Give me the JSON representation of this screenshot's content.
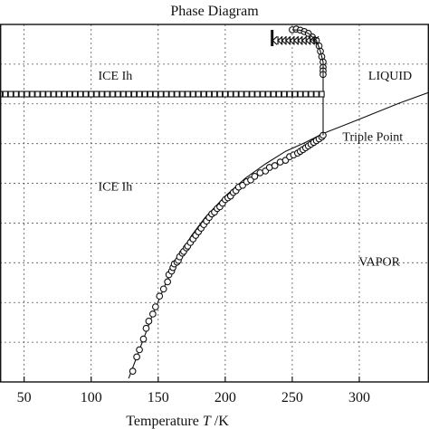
{
  "chart_data": {
    "type": "scatter",
    "title": "Phase Diagram",
    "xlabel_prefix": "Temperature ",
    "xlabel_var": "T",
    "xlabel_unit": " /K",
    "xlim": [
      32,
      352
    ],
    "ylim": [
      0,
      1
    ],
    "x_ticks": [
      50,
      100,
      150,
      200,
      250,
      300
    ],
    "x_tick_labels": [
      "50",
      "100",
      "150",
      "200",
      "250",
      "300"
    ],
    "grid": true,
    "annotations": [
      {
        "text": "ICE Ih",
        "x": 118,
        "y": 0.845
      },
      {
        "text": "LIQUID",
        "x": 323,
        "y": 0.845
      },
      {
        "text": "ICE Ih",
        "x": 118,
        "y": 0.535
      },
      {
        "text": "Triple Point",
        "x": 310,
        "y": 0.675
      },
      {
        "text": "VAPOR",
        "x": 315,
        "y": 0.325
      }
    ],
    "series": [
      {
        "type": "line",
        "points": [
          [
            128,
            0.01
          ],
          [
            135,
            0.08
          ],
          [
            145,
            0.18
          ],
          [
            155,
            0.27
          ],
          [
            165,
            0.35
          ],
          [
            175,
            0.41
          ],
          [
            185,
            0.46
          ],
          [
            200,
            0.52
          ],
          [
            215,
            0.57
          ],
          [
            230,
            0.61
          ],
          [
            245,
            0.645
          ],
          [
            260,
            0.67
          ],
          [
            273,
            0.695
          ],
          [
            290,
            0.72
          ],
          [
            310,
            0.75
          ],
          [
            330,
            0.78
          ],
          [
            352,
            0.81
          ]
        ]
      },
      {
        "type": "scatter",
        "marker": "circle",
        "points": [
          [
            131,
            0.03
          ],
          [
            134,
            0.07
          ],
          [
            136,
            0.09
          ],
          [
            139,
            0.12
          ],
          [
            141,
            0.15
          ],
          [
            143,
            0.17
          ],
          [
            146,
            0.19
          ],
          [
            148,
            0.21
          ],
          [
            151,
            0.24
          ],
          [
            154,
            0.26
          ],
          [
            157,
            0.28
          ],
          [
            158,
            0.3
          ],
          [
            160,
            0.31
          ],
          [
            161,
            0.32
          ],
          [
            162,
            0.33
          ],
          [
            164,
            0.335
          ],
          [
            165,
            0.34
          ],
          [
            166,
            0.35
          ],
          [
            168,
            0.36
          ],
          [
            169,
            0.365
          ],
          [
            171,
            0.375
          ],
          [
            172,
            0.38
          ],
          [
            174,
            0.39
          ],
          [
            176,
            0.4
          ],
          [
            178,
            0.41
          ],
          [
            180,
            0.42
          ],
          [
            182,
            0.43
          ],
          [
            184,
            0.44
          ],
          [
            186,
            0.45
          ],
          [
            188,
            0.46
          ],
          [
            190,
            0.47
          ],
          [
            192,
            0.475
          ],
          [
            194,
            0.485
          ],
          [
            196,
            0.49
          ],
          [
            198,
            0.5
          ],
          [
            200,
            0.51
          ],
          [
            202,
            0.515
          ],
          [
            204,
            0.52
          ],
          [
            206,
            0.53
          ],
          [
            208,
            0.535
          ],
          [
            210,
            0.545
          ],
          [
            213,
            0.55
          ],
          [
            216,
            0.56
          ],
          [
            219,
            0.565
          ],
          [
            222,
            0.575
          ],
          [
            226,
            0.585
          ],
          [
            230,
            0.59
          ],
          [
            233,
            0.6
          ],
          [
            237,
            0.605
          ],
          [
            241,
            0.615
          ],
          [
            245,
            0.62
          ],
          [
            248,
            0.63
          ],
          [
            251,
            0.635
          ],
          [
            254,
            0.64
          ],
          [
            256,
            0.645
          ],
          [
            258,
            0.65
          ],
          [
            260,
            0.655
          ],
          [
            262,
            0.66
          ],
          [
            264,
            0.665
          ],
          [
            266,
            0.67
          ],
          [
            268,
            0.675
          ],
          [
            270,
            0.68
          ],
          [
            272,
            0.685
          ],
          [
            273,
            0.69
          ]
        ]
      },
      {
        "type": "scatter",
        "marker": "circle",
        "points": [
          [
            250,
            0.985
          ],
          [
            253,
            0.987
          ],
          [
            256,
            0.984
          ],
          [
            259,
            0.98
          ],
          [
            262,
            0.975
          ],
          [
            265,
            0.965
          ],
          [
            268,
            0.955
          ],
          [
            270,
            0.94
          ],
          [
            271,
            0.925
          ],
          [
            272,
            0.91
          ],
          [
            273,
            0.895
          ],
          [
            273,
            0.88
          ],
          [
            273,
            0.87
          ],
          [
            273,
            0.86
          ]
        ]
      },
      {
        "type": "line",
        "points": [
          [
            250,
            0.985
          ],
          [
            256,
            0.984
          ],
          [
            262,
            0.975
          ],
          [
            268,
            0.955
          ],
          [
            271,
            0.925
          ],
          [
            273,
            0.895
          ],
          [
            273,
            0.84
          ],
          [
            273,
            0.69
          ]
        ]
      },
      {
        "type": "scatter",
        "marker": "k",
        "points": [
          [
            237,
            0.955
          ],
          [
            241,
            0.955
          ],
          [
            244,
            0.955
          ],
          [
            247,
            0.955
          ],
          [
            250,
            0.955
          ],
          [
            253,
            0.955
          ],
          [
            256,
            0.955
          ],
          [
            259,
            0.955
          ],
          [
            262,
            0.955
          ],
          [
            265,
            0.955
          ],
          [
            268,
            0.955
          ]
        ]
      },
      {
        "type": "scatter",
        "marker": "tick",
        "points": [
          [
            235,
            0.962
          ]
        ]
      },
      {
        "type": "scatter",
        "marker": "dash",
        "points": [
          [
            32,
            0.805
          ],
          [
            36,
            0.805
          ],
          [
            40,
            0.805
          ],
          [
            44,
            0.805
          ],
          [
            48,
            0.805
          ],
          [
            52,
            0.805
          ],
          [
            56,
            0.805
          ],
          [
            60,
            0.805
          ],
          [
            64,
            0.805
          ],
          [
            68,
            0.805
          ],
          [
            72,
            0.805
          ],
          [
            76,
            0.805
          ],
          [
            80,
            0.805
          ],
          [
            84,
            0.805
          ],
          [
            88,
            0.805
          ],
          [
            92,
            0.805
          ],
          [
            96,
            0.805
          ],
          [
            100,
            0.805
          ],
          [
            104,
            0.805
          ],
          [
            108,
            0.805
          ],
          [
            112,
            0.805
          ],
          [
            116,
            0.805
          ],
          [
            120,
            0.805
          ],
          [
            124,
            0.805
          ],
          [
            128,
            0.805
          ],
          [
            132,
            0.805
          ],
          [
            136,
            0.805
          ],
          [
            140,
            0.805
          ],
          [
            144,
            0.805
          ],
          [
            148,
            0.805
          ],
          [
            152,
            0.805
          ],
          [
            156,
            0.805
          ],
          [
            160,
            0.805
          ],
          [
            164,
            0.805
          ],
          [
            168,
            0.805
          ],
          [
            172,
            0.805
          ],
          [
            176,
            0.805
          ],
          [
            180,
            0.805
          ],
          [
            184,
            0.805
          ],
          [
            188,
            0.805
          ],
          [
            192,
            0.805
          ],
          [
            196,
            0.805
          ],
          [
            200,
            0.805
          ],
          [
            204,
            0.805
          ],
          [
            208,
            0.805
          ],
          [
            212,
            0.805
          ],
          [
            216,
            0.805
          ],
          [
            220,
            0.805
          ],
          [
            224,
            0.805
          ],
          [
            228,
            0.805
          ],
          [
            232,
            0.805
          ],
          [
            236,
            0.805
          ],
          [
            240,
            0.805
          ],
          [
            244,
            0.805
          ],
          [
            248,
            0.805
          ],
          [
            252,
            0.805
          ],
          [
            256,
            0.805
          ],
          [
            260,
            0.805
          ],
          [
            264,
            0.805
          ],
          [
            268,
            0.805
          ],
          [
            272,
            0.805
          ]
        ]
      }
    ]
  }
}
